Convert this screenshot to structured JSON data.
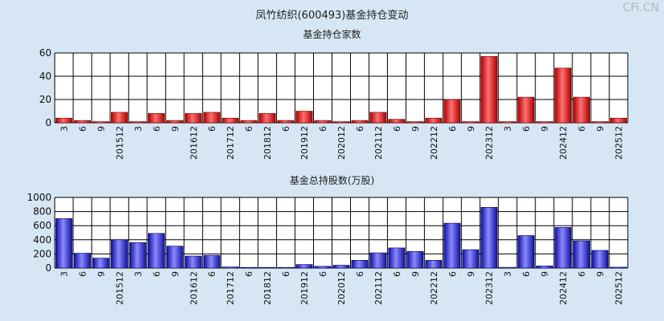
{
  "page": {
    "title": "凤竹纺织(600493)基金持仓变动",
    "watermark": "CFi.CN"
  },
  "colors": {
    "background": "#d6e6f4",
    "plot_bg": "#ffffff",
    "grid": "#000000",
    "red_bar": "#e01818",
    "blue_bar": "#2a2ad8"
  },
  "chart_data": [
    {
      "type": "bar",
      "title": "基金持仓家数",
      "ylim": [
        0,
        60
      ],
      "yticks": [
        "0",
        "20",
        "40",
        "60"
      ],
      "color": "#e01818",
      "categories": [
        "3",
        "6",
        "9",
        "201512",
        "3",
        "6",
        "9",
        "201612",
        "6",
        "201712",
        "6",
        "201812",
        "6",
        "201912",
        "6",
        "202012",
        "6",
        "202112",
        "6",
        "9",
        "202212",
        "6",
        "9",
        "202312",
        "3",
        "6",
        "9",
        "202412",
        "6",
        "9",
        "202512"
      ],
      "values": [
        4,
        2,
        1,
        9,
        1,
        8,
        2,
        8,
        9,
        4,
        2,
        8,
        2,
        10,
        2,
        1,
        2,
        9,
        3,
        1,
        4,
        20,
        1,
        57,
        1,
        22,
        1,
        47,
        22,
        1,
        4
      ]
    },
    {
      "type": "bar",
      "title": "基金总持股数(万股)",
      "ylim": [
        0,
        1000
      ],
      "yticks": [
        "0",
        "200",
        "400",
        "600",
        "800",
        "1000"
      ],
      "color": "#2a2ad8",
      "categories": [
        "3",
        "6",
        "9",
        "201512",
        "3",
        "6",
        "9",
        "201612",
        "6",
        "201712",
        "6",
        "201812",
        "6",
        "201912",
        "6",
        "202012",
        "6",
        "202112",
        "6",
        "9",
        "202212",
        "6",
        "9",
        "202312",
        "3",
        "6",
        "9",
        "202412",
        "6",
        "9",
        "202512"
      ],
      "values": [
        700,
        210,
        140,
        400,
        360,
        490,
        310,
        170,
        180,
        15,
        8,
        8,
        8,
        50,
        25,
        40,
        110,
        215,
        285,
        235,
        110,
        635,
        260,
        860,
        10,
        460,
        30,
        575,
        385,
        250,
        12
      ]
    }
  ]
}
